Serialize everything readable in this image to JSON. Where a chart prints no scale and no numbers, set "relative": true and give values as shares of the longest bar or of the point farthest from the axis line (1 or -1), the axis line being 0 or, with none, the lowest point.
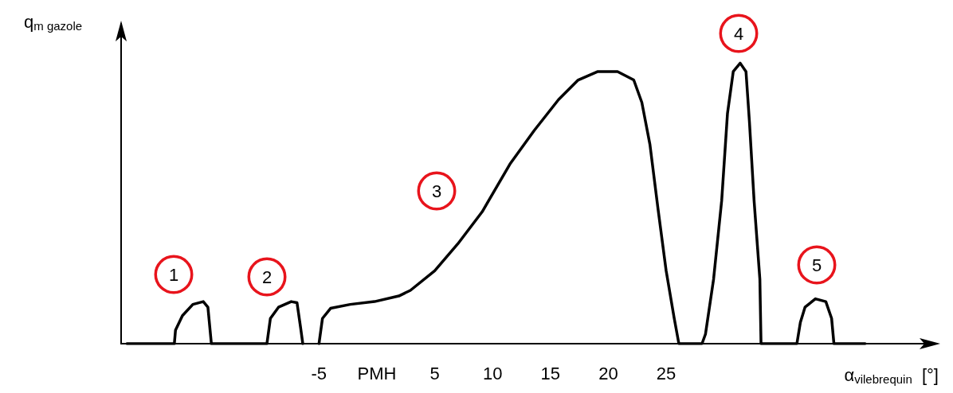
{
  "chart_data": {
    "type": "line",
    "relative": true,
    "xlabel": "α$_{vilebrequin}$  [°]",
    "ylabel": "q$_{m gazole}$",
    "line_style": "solid",
    "marker": "none",
    "grid": false,
    "tick_labels": "x",
    "xlim": [
      -22.1,
      48
    ],
    "xticks": [
      -5,
      {
        "value": 0,
        "label": "PMH"
      },
      5,
      10,
      15,
      20,
      25
    ],
    "series": [
      {
        "color": "#000000",
        "x": [
          -21.6,
          -17.5,
          -17.4,
          -16.8,
          -15.9,
          -15.0,
          -14.6,
          -14.3,
          -9.5,
          -9.2,
          -8.5,
          -7.4,
          -6.9,
          -6.6,
          -6.4
        ],
        "values": [
          0,
          0,
          0.048,
          0.1,
          0.14,
          0.15,
          0.13,
          0,
          0,
          0.09,
          0.13,
          0.15,
          0.146,
          0.06,
          0
        ]
      },
      {
        "color": "#000000",
        "x": [
          -5.0,
          -4.7,
          -4.0,
          -2.3,
          -0.2,
          1.9,
          2.9,
          5.0,
          7.0,
          9.1,
          11.5,
          13.6,
          15.7,
          17.4,
          19.1,
          20.8,
          22.2,
          22.9,
          23.6,
          24.3,
          25.0,
          25.7,
          26.1,
          28.1,
          28.4,
          29.1,
          29.8,
          30.3,
          30.8,
          31.4,
          31.9,
          32.2,
          32.6,
          33.1,
          33.2,
          36.3,
          36.6,
          37.0,
          37.9,
          38.8,
          39.3,
          39.5,
          42.2
        ],
        "values": [
          0,
          0.09,
          0.126,
          0.14,
          0.15,
          0.17,
          0.19,
          0.26,
          0.356,
          0.47,
          0.64,
          0.76,
          0.87,
          0.94,
          0.97,
          0.97,
          0.94,
          0.86,
          0.71,
          0.48,
          0.26,
          0.09,
          0,
          0,
          0.034,
          0.23,
          0.51,
          0.82,
          0.97,
          1.0,
          0.97,
          0.79,
          0.51,
          0.23,
          0,
          0,
          0.076,
          0.13,
          0.16,
          0.15,
          0.09,
          0,
          0
        ]
      }
    ],
    "annotations": [
      "1",
      "2",
      "3",
      "4",
      "5"
    ]
  }
}
